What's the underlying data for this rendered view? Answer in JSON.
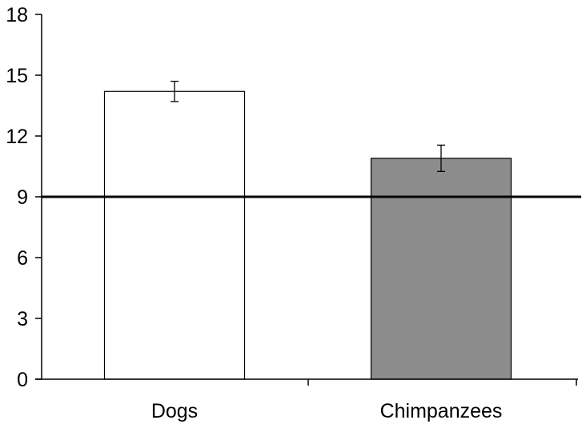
{
  "chart_data": {
    "type": "bar",
    "title": "",
    "xlabel": "",
    "ylabel": "",
    "categories": [
      "Dogs",
      "Chimpanzees"
    ],
    "values": [
      14.2,
      10.9
    ],
    "error": [
      0.5,
      0.65
    ],
    "bar_colors": [
      "#ffffff",
      "#8c8c8c"
    ],
    "ylim": [
      0,
      18
    ],
    "yticks": [
      0,
      3,
      6,
      9,
      12,
      15,
      18
    ],
    "ytick_labels": [
      "0",
      "3",
      "6",
      "9",
      "12",
      "15",
      "18"
    ],
    "reference_line": 9,
    "grid": false,
    "legend": "none"
  }
}
